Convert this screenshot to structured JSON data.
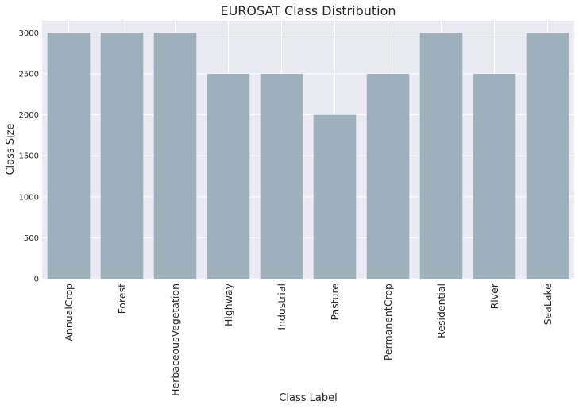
{
  "chart_data": {
    "type": "bar",
    "title": "EUROSAT Class Distribution",
    "xlabel": "Class Label",
    "ylabel": "Class Size",
    "categories": [
      "AnnualCrop",
      "Forest",
      "HerbaceousVegetation",
      "Highway",
      "Industrial",
      "Pasture",
      "PermanentCrop",
      "Residential",
      "River",
      "SeaLake"
    ],
    "values": [
      3000,
      3000,
      3000,
      2500,
      2500,
      2000,
      2500,
      3000,
      2500,
      3000
    ],
    "ylim": [
      0,
      3150
    ],
    "yticks": [
      0,
      500,
      1000,
      1500,
      2000,
      2500,
      3000
    ],
    "grid": true,
    "bar_color": "#9db0bb",
    "background_color": "#eaeaf2",
    "grid_color": "#ffffff"
  }
}
